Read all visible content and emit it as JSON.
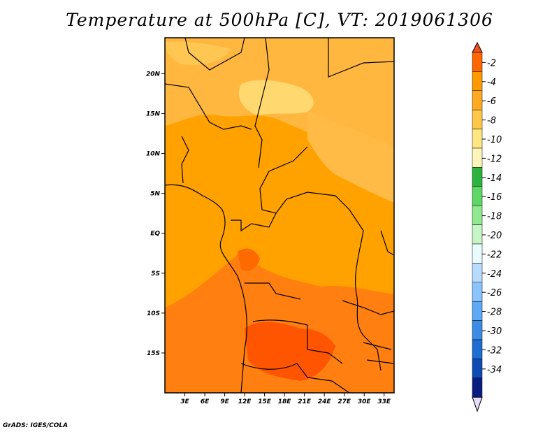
{
  "title": "Temperature at 500hPa [C], VT: 2019061306",
  "credit": "GrADS: IGES/COLA",
  "map": {
    "lat_ticks": [
      "20N",
      "15N",
      "10N",
      "5N",
      "EQ",
      "5S",
      "10S",
      "15S"
    ],
    "lat_values": [
      20,
      15,
      10,
      5,
      0,
      -5,
      -10,
      -15
    ],
    "lon_ticks": [
      "3E",
      "6E",
      "9E",
      "12E",
      "15E",
      "18E",
      "21E",
      "24E",
      "27E",
      "30E",
      "33E"
    ],
    "lon_values": [
      3,
      6,
      9,
      12,
      15,
      18,
      21,
      24,
      27,
      30,
      33
    ],
    "lat_range": [
      -20,
      24.5
    ],
    "lon_range": [
      0,
      34.5
    ]
  },
  "colorbar": {
    "labels": [
      "-2",
      "-4",
      "-6",
      "-8",
      "-10",
      "-12",
      "-14",
      "-16",
      "-18",
      "-20",
      "-22",
      "-24",
      "-26",
      "-28",
      "-30",
      "-32",
      "-34"
    ],
    "colors": [
      "#ff6600",
      "#ff9900",
      "#ffaa22",
      "#ffc84a",
      "#ffe680",
      "#fff5bb",
      "#2db43e",
      "#5ed864",
      "#90e890",
      "#c6f5c6",
      "#e9fbff",
      "#b8dcff",
      "#8cc4ff",
      "#5ea8f5",
      "#3c8ce6",
      "#1e6ed2",
      "#0f4bb4",
      "#0a1e82"
    ],
    "top_color": "#f05020",
    "bottom_color": "#e4ddf5"
  }
}
